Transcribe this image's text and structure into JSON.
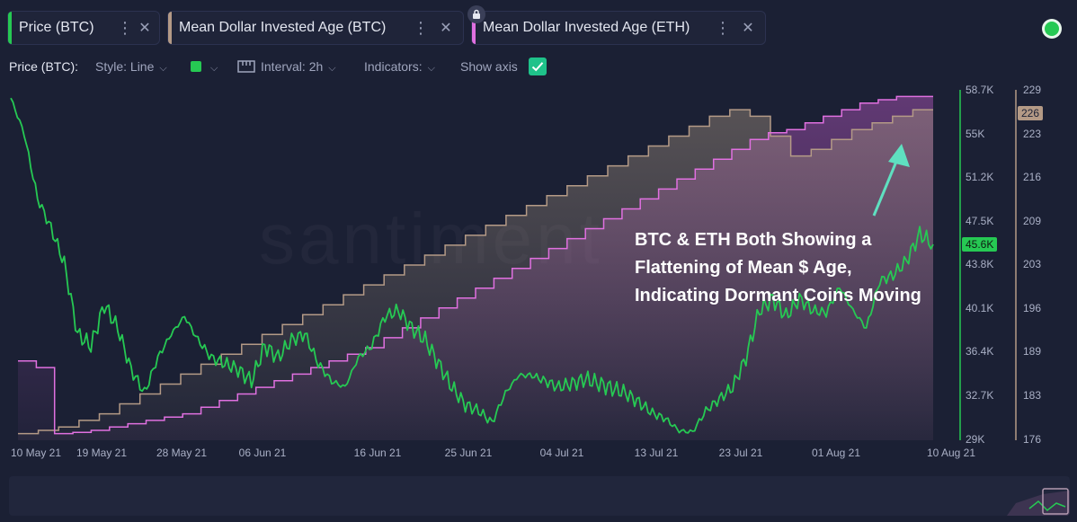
{
  "tabs": [
    {
      "label": "Price (BTC)",
      "color": "#26c953"
    },
    {
      "label": "Mean Dollar Invested Age (BTC)",
      "color": "#b49a86"
    },
    {
      "label": "Mean Dollar Invested Age (ETH)",
      "color": "#e070e0"
    }
  ],
  "toolbar": {
    "metric_label": "Price (BTC):",
    "style_label": "Style: Line",
    "interval_label": "Interval: 2h",
    "indicators_label": "Indicators:",
    "show_axis_label": "Show axis",
    "show_axis_checked": true
  },
  "annotation": {
    "line1": "BTC & ETH Both Showing a",
    "line2": "Flattening of Mean $ Age,",
    "line3": "Indicating Dormant Coins Moving"
  },
  "watermark": "santiment",
  "chart_data": {
    "type": "line",
    "x_ticks": [
      "10 May 21",
      "19 May 21",
      "28 May 21",
      "06 Jun 21",
      "16 Jun 21",
      "25 Jun 21",
      "04 Jul 21",
      "13 Jul 21",
      "23 Jul 21",
      "01 Aug 21",
      "10 Aug 21"
    ],
    "price_axis": {
      "ticks": [
        "58.7K",
        "55K",
        "51.2K",
        "47.5K",
        "43.8K",
        "40.1K",
        "36.4K",
        "32.7K",
        "29K"
      ],
      "range": [
        29000,
        58700
      ],
      "current_label": "45.6K",
      "color": "#26c953"
    },
    "age_axis": {
      "ticks": [
        "229",
        "223",
        "216",
        "209",
        "203",
        "196",
        "189",
        "183",
        "176"
      ],
      "range": [
        176,
        229
      ],
      "current_label": "226",
      "color": "#b49a86"
    },
    "series": [
      {
        "name": "Price (BTC)",
        "color": "#26c953",
        "values": [
          58000,
          55000,
          49500,
          47000,
          44000,
          38000,
          37000,
          40500,
          38500,
          35000,
          33000,
          36000,
          38000,
          39500,
          37500,
          36000,
          35500,
          35000,
          34000,
          37000,
          36000,
          37500,
          38000,
          35500,
          34000,
          33500,
          36000,
          37000,
          39500,
          40000,
          38500,
          37500,
          35500,
          33500,
          32000,
          31500,
          30500,
          33000,
          34500,
          34500,
          34000,
          33500,
          33800,
          34200,
          33800,
          33400,
          33000,
          32200,
          31300,
          30800,
          29800,
          29700,
          31500,
          32500,
          33500,
          36000,
          40000,
          41000,
          39500,
          41000,
          40000,
          39800,
          42000,
          40000,
          38500,
          42500,
          43000,
          44200,
          46500,
          45600
        ],
        "x_end": "10 Aug 21"
      },
      {
        "name": "Mean Dollar Invested Age (BTC)",
        "color": "#b49a86",
        "values": [
          177,
          177.5,
          178,
          179,
          180,
          181.5,
          183,
          184.5,
          186,
          187.5,
          189,
          190.5,
          192,
          193.5,
          195,
          196.5,
          198,
          199.5,
          201,
          202.5,
          204,
          205.5,
          207,
          208.5,
          210,
          211.5,
          213,
          214.5,
          216,
          217.5,
          219,
          220.5,
          222,
          223.5,
          225,
          226,
          225,
          222,
          219,
          220,
          221.5,
          223,
          224,
          225,
          226
        ]
      },
      {
        "name": "Mean Dollar Invested Age (ETH)",
        "color": "#e070e0",
        "values": [
          188,
          187,
          177,
          177.2,
          177.5,
          178,
          178.5,
          179,
          179.5,
          180,
          181,
          182,
          183,
          184,
          185,
          186,
          187,
          188,
          189,
          190,
          191.5,
          193,
          194.5,
          196,
          197.5,
          199,
          200.5,
          202,
          203.5,
          205,
          206.5,
          208,
          209.5,
          211,
          212.5,
          214,
          215.5,
          217,
          218.5,
          220,
          221.5,
          222.5,
          223,
          224,
          225,
          226,
          227,
          227.5,
          228,
          228
        ]
      }
    ]
  }
}
